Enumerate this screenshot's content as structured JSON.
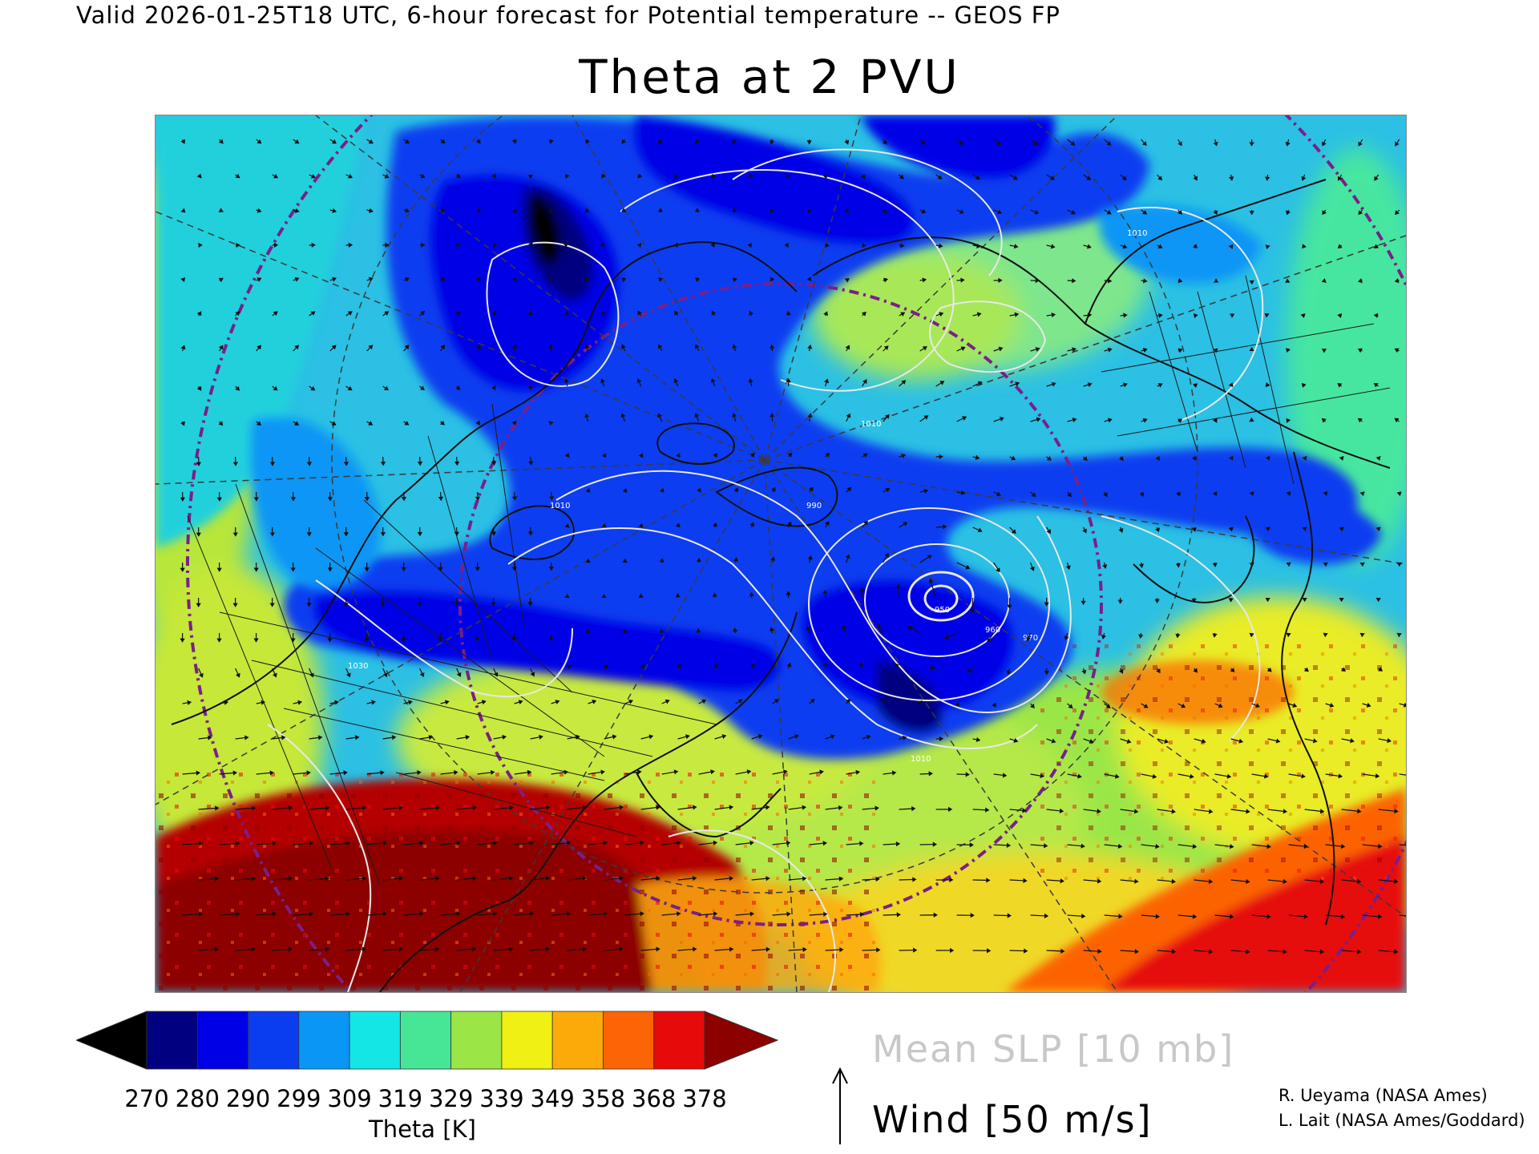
{
  "header": {
    "valid_line": "Valid 2026-01-25T18 UTC, 6-hour forecast for Potential temperature -- GEOS FP",
    "title": "Theta at 2 PVU"
  },
  "map": {
    "projection": "polar-stereographic-north",
    "fields": [
      "Theta at 2 PVU (shaded)",
      "Mean SLP (white contours)",
      "Wind (arrows)"
    ],
    "slp_contour_labels": [
      "950",
      "960",
      "970",
      "990",
      "1010",
      "1010",
      "1030",
      "1010",
      "1010"
    ],
    "colors": {
      "ocean_bg": "#2bb6e0",
      "contour": "#e8e8e8",
      "coast": "#101010",
      "latitude_ring": "#7a1f8a",
      "grid": "#3a3a3a"
    }
  },
  "colorbar": {
    "title": "Theta [K]",
    "tick_labels": [
      "270",
      "280",
      "290",
      "299",
      "309",
      "319",
      "329",
      "339",
      "349",
      "358",
      "368",
      "378"
    ],
    "colors": [
      "#000000",
      "#000080",
      "#0000e6",
      "#0a3cf0",
      "#0a96f5",
      "#14e6e6",
      "#46e696",
      "#9be646",
      "#f0f014",
      "#fcaa0a",
      "#fc6405",
      "#e60a0a",
      "#8c0000"
    ]
  },
  "legend": {
    "slp_label": "Mean SLP [10 mb]",
    "wind_label": "Wind [50 m/s]"
  },
  "credits": {
    "line1": "R. Ueyama (NASA Ames)",
    "line2": "L. Lait (NASA Ames/Goddard)"
  }
}
